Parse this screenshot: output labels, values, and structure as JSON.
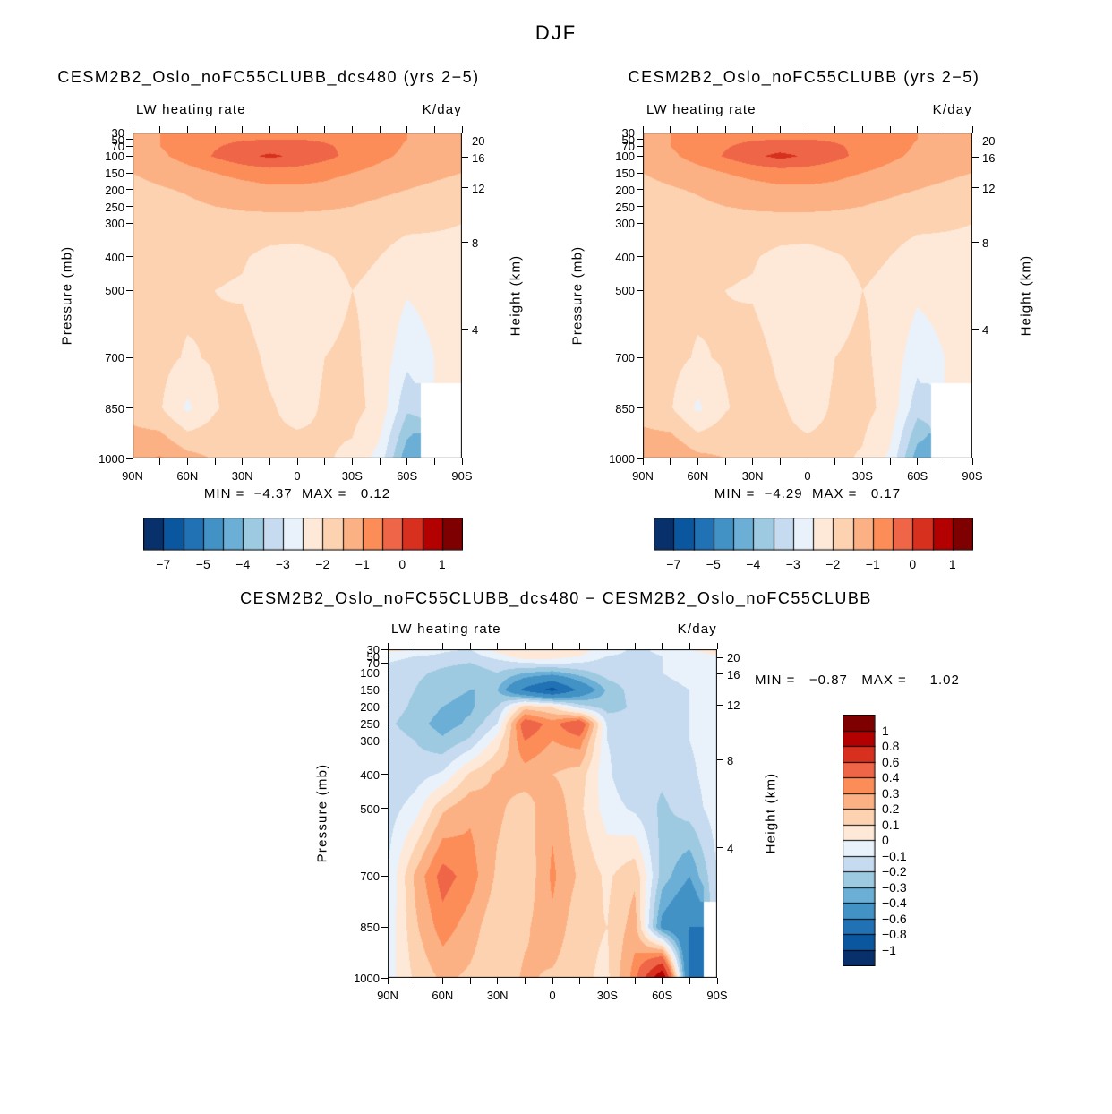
{
  "title": "DJF",
  "chart_data": [
    {
      "id": "panel1",
      "type": "heatmap",
      "title": "CESM2B2_Oslo_noFC55CLUBB_dcs480 (yrs 2−5)",
      "subtitle_left": "LW heating rate",
      "subtitle_right": "K/day",
      "ylabel_left": "Pressure (mb)",
      "ylabel_right": "Height (km)",
      "stats_text": "MIN =  −4.37  MAX =   0.12",
      "min": -4.37,
      "max": 0.12,
      "lat_range": [
        90,
        -90
      ],
      "pressure_range_mb": [
        30,
        1000
      ],
      "lat_tick_labels": [
        "90N",
        "60N",
        "30N",
        "0",
        "30S",
        "60S",
        "90S"
      ],
      "pressure_ticks": [
        30,
        50,
        70,
        100,
        150,
        200,
        250,
        300,
        400,
        500,
        700,
        850,
        1000
      ],
      "pressure_tick_labels": [
        "30",
        "50",
        "70",
        "100",
        "150",
        "200",
        "250",
        "300",
        "400",
        "500",
        "700",
        "850",
        "1000"
      ],
      "height_ticks_km": [
        20,
        16,
        12,
        8,
        4
      ],
      "height_tick_pressures": [
        55,
        104,
        194,
        357,
        616
      ],
      "levels": [
        -7,
        -6,
        -5,
        -4.5,
        -4,
        -3.5,
        -3,
        -2.5,
        -2,
        -1.5,
        -1,
        -0.5,
        0,
        0.5,
        1
      ],
      "palette": [
        "#08306b",
        "#0a57a0",
        "#2171b5",
        "#4292c6",
        "#6baed6",
        "#9ecae1",
        "#c6dbef",
        "#e9f2fb",
        "#fee9d9",
        "#fdd2b0",
        "#fcb184",
        "#fc8d59",
        "#ef6548",
        "#d7301f",
        "#b30000",
        "#7f0000"
      ],
      "colorbar": {
        "orientation": "horizontal",
        "labels": [
          "−7",
          "−5",
          "−4",
          "−3",
          "−2",
          "−1",
          "0",
          "1"
        ],
        "indices": [
          0,
          2,
          4,
          6,
          8,
          10,
          12,
          14
        ]
      },
      "lat_grid": [
        90,
        75,
        60,
        45,
        30,
        15,
        0,
        -15,
        -30,
        -45,
        -60,
        -75,
        -90
      ],
      "pressure_grid": [
        30,
        50,
        70,
        100,
        150,
        200,
        250,
        300,
        400,
        500,
        700,
        850,
        1000
      ],
      "values": [
        [
          -1.2,
          -1.0,
          -0.85,
          -0.75,
          -0.7,
          -0.65,
          -0.65,
          -0.7,
          -0.75,
          -0.85,
          -1.0,
          -1.15,
          -1.25
        ],
        [
          -1.25,
          -1.0,
          -0.8,
          -0.65,
          -0.55,
          -0.5,
          -0.5,
          -0.55,
          -0.65,
          -0.8,
          -1.0,
          -1.2,
          -1.3
        ],
        [
          -1.2,
          -1.0,
          -0.75,
          -0.55,
          -0.35,
          -0.3,
          -0.35,
          -0.45,
          -0.6,
          -0.8,
          -1.05,
          -1.2,
          -1.3
        ],
        [
          -1.35,
          -1.1,
          -0.8,
          -0.45,
          -0.15,
          0.1,
          -0.1,
          -0.35,
          -0.65,
          -0.9,
          -1.1,
          -1.3,
          -1.4
        ],
        [
          -1.5,
          -1.35,
          -1.2,
          -1.0,
          -0.85,
          -0.75,
          -0.75,
          -0.85,
          -1.0,
          -1.15,
          -1.3,
          -1.4,
          -1.5
        ],
        [
          -1.65,
          -1.55,
          -1.45,
          -1.3,
          -1.2,
          -1.1,
          -1.1,
          -1.15,
          -1.3,
          -1.4,
          -1.5,
          -1.6,
          -1.7
        ],
        [
          -1.8,
          -1.7,
          -1.6,
          -1.5,
          -1.45,
          -1.4,
          -1.4,
          -1.45,
          -1.5,
          -1.6,
          -1.7,
          -1.8,
          -1.85
        ],
        [
          -1.9,
          -1.8,
          -1.75,
          -1.7,
          -1.65,
          -1.7,
          -1.7,
          -1.65,
          -1.7,
          -1.8,
          -1.9,
          -1.95,
          -2.0
        ],
        [
          -2.0,
          -1.9,
          -1.85,
          -1.9,
          -1.95,
          -2.15,
          -2.2,
          -2.05,
          -1.9,
          -2.0,
          -2.2,
          -2.15,
          -2.1
        ],
        [
          -2.0,
          -1.9,
          -1.9,
          -2.0,
          -2.05,
          -2.3,
          -2.4,
          -2.2,
          -2.0,
          -2.1,
          -2.45,
          -2.3,
          -2.2
        ],
        [
          -1.9,
          -1.85,
          -2.05,
          -1.95,
          -1.8,
          -2.1,
          -2.2,
          -2.0,
          -1.9,
          -2.2,
          -2.85,
          -2.5,
          -2.3
        ],
        [
          -1.7,
          -1.95,
          -2.6,
          -2.05,
          -1.75,
          -1.95,
          -2.15,
          -1.95,
          -1.85,
          -2.15,
          -3.4,
          null,
          null
        ],
        [
          -1.1,
          -0.95,
          -1.3,
          -1.55,
          -1.75,
          -1.9,
          -1.8,
          -1.95,
          -2.1,
          -2.7,
          -4.37,
          null,
          null
        ]
      ]
    },
    {
      "id": "panel2",
      "type": "heatmap",
      "title": "CESM2B2_Oslo_noFC55CLUBB (yrs 2−5)",
      "subtitle_left": "LW heating rate",
      "subtitle_right": "K/day",
      "ylabel_left": "Pressure (mb)",
      "ylabel_right": "Height (km)",
      "stats_text": "MIN =  −4.29  MAX =   0.17",
      "min": -4.29,
      "max": 0.17,
      "lat_range": [
        90,
        -90
      ],
      "pressure_range_mb": [
        30,
        1000
      ],
      "lat_tick_labels": [
        "90N",
        "60N",
        "30N",
        "0",
        "30S",
        "60S",
        "90S"
      ],
      "pressure_ticks": [
        30,
        50,
        70,
        100,
        150,
        200,
        250,
        300,
        400,
        500,
        700,
        850,
        1000
      ],
      "pressure_tick_labels": [
        "30",
        "50",
        "70",
        "100",
        "150",
        "200",
        "250",
        "300",
        "400",
        "500",
        "700",
        "850",
        "1000"
      ],
      "height_ticks_km": [
        20,
        16,
        12,
        8,
        4
      ],
      "height_tick_pressures": [
        55,
        104,
        194,
        357,
        616
      ],
      "levels": [
        -7,
        -6,
        -5,
        -4.5,
        -4,
        -3.5,
        -3,
        -2.5,
        -2,
        -1.5,
        -1,
        -0.5,
        0,
        0.5,
        1
      ],
      "palette": [
        "#08306b",
        "#0a57a0",
        "#2171b5",
        "#4292c6",
        "#6baed6",
        "#9ecae1",
        "#c6dbef",
        "#e9f2fb",
        "#fee9d9",
        "#fdd2b0",
        "#fcb184",
        "#fc8d59",
        "#ef6548",
        "#d7301f",
        "#b30000",
        "#7f0000"
      ],
      "colorbar": {
        "orientation": "horizontal",
        "labels": [
          "−7",
          "−5",
          "−4",
          "−3",
          "−2",
          "−1",
          "0",
          "1"
        ],
        "indices": [
          0,
          2,
          4,
          6,
          8,
          10,
          12,
          14
        ]
      },
      "lat_grid": [
        90,
        75,
        60,
        45,
        30,
        15,
        0,
        -15,
        -30,
        -45,
        -60,
        -75,
        -90
      ],
      "pressure_grid": [
        30,
        50,
        70,
        100,
        150,
        200,
        250,
        300,
        400,
        500,
        700,
        850,
        1000
      ],
      "values": [
        [
          -1.2,
          -1.0,
          -0.85,
          -0.75,
          -0.7,
          -0.65,
          -0.65,
          -0.7,
          -0.75,
          -0.85,
          -1.0,
          -1.15,
          -1.25
        ],
        [
          -1.25,
          -1.0,
          -0.8,
          -0.65,
          -0.55,
          -0.5,
          -0.5,
          -0.55,
          -0.65,
          -0.8,
          -1.0,
          -1.2,
          -1.3
        ],
        [
          -1.2,
          -1.0,
          -0.75,
          -0.55,
          -0.35,
          -0.28,
          -0.35,
          -0.45,
          -0.6,
          -0.8,
          -1.05,
          -1.2,
          -1.3
        ],
        [
          -1.35,
          -1.1,
          -0.8,
          -0.45,
          -0.12,
          0.15,
          -0.08,
          -0.35,
          -0.65,
          -0.9,
          -1.1,
          -1.3,
          -1.4
        ],
        [
          -1.5,
          -1.35,
          -1.2,
          -1.0,
          -0.85,
          -0.75,
          -0.75,
          -0.85,
          -1.0,
          -1.15,
          -1.3,
          -1.4,
          -1.5
        ],
        [
          -1.65,
          -1.55,
          -1.45,
          -1.3,
          -1.2,
          -1.1,
          -1.1,
          -1.15,
          -1.3,
          -1.4,
          -1.5,
          -1.6,
          -1.7
        ],
        [
          -1.8,
          -1.7,
          -1.6,
          -1.5,
          -1.45,
          -1.4,
          -1.4,
          -1.45,
          -1.5,
          -1.6,
          -1.7,
          -1.8,
          -1.85
        ],
        [
          -1.9,
          -1.8,
          -1.75,
          -1.7,
          -1.65,
          -1.7,
          -1.7,
          -1.65,
          -1.7,
          -1.8,
          -1.9,
          -1.95,
          -2.0
        ],
        [
          -2.0,
          -1.9,
          -1.85,
          -1.9,
          -1.95,
          -2.15,
          -2.2,
          -2.05,
          -1.9,
          -2.0,
          -2.2,
          -2.15,
          -2.1
        ],
        [
          -2.0,
          -1.9,
          -1.9,
          -2.0,
          -2.05,
          -2.3,
          -2.4,
          -2.2,
          -2.0,
          -2.1,
          -2.4,
          -2.3,
          -2.2
        ],
        [
          -1.9,
          -1.85,
          -2.05,
          -1.95,
          -1.8,
          -2.1,
          -2.2,
          -2.0,
          -1.9,
          -2.2,
          -2.8,
          -2.5,
          -2.3
        ],
        [
          -1.7,
          -1.95,
          -2.6,
          -2.05,
          -1.75,
          -1.95,
          -2.15,
          -1.95,
          -1.85,
          -2.15,
          -3.3,
          null,
          null
        ],
        [
          -1.15,
          -1.0,
          -1.35,
          -1.5,
          -1.7,
          -1.9,
          -1.85,
          -1.9,
          -2.05,
          -2.6,
          -4.29,
          null,
          null
        ]
      ]
    },
    {
      "id": "panel3",
      "type": "heatmap",
      "title": "CESM2B2_Oslo_noFC55CLUBB_dcs480 − CESM2B2_Oslo_noFC55CLUBB",
      "subtitle_left": "LW heating rate",
      "subtitle_right": "K/day",
      "ylabel_left": "Pressure (mb)",
      "ylabel_right": "Height (km)",
      "stats_text": "MIN =   −0.87   MAX =     1.02",
      "min": -0.87,
      "max": 1.02,
      "lat_range": [
        90,
        -90
      ],
      "pressure_range_mb": [
        30,
        1000
      ],
      "lat_tick_labels": [
        "90N",
        "60N",
        "30N",
        "0",
        "30S",
        "60S",
        "90S"
      ],
      "pressure_ticks": [
        30,
        50,
        70,
        100,
        150,
        200,
        250,
        300,
        400,
        500,
        700,
        850,
        1000
      ],
      "pressure_tick_labels": [
        "30",
        "50",
        "70",
        "100",
        "150",
        "200",
        "250",
        "300",
        "400",
        "500",
        "700",
        "850",
        "1000"
      ],
      "height_ticks_km": [
        20,
        16,
        12,
        8,
        4
      ],
      "height_tick_pressures": [
        55,
        104,
        194,
        357,
        616
      ],
      "levels": [
        -1,
        -0.8,
        -0.6,
        -0.4,
        -0.3,
        -0.2,
        -0.1,
        0,
        0.1,
        0.2,
        0.3,
        0.4,
        0.6,
        0.8,
        1
      ],
      "palette": [
        "#08306b",
        "#0a57a0",
        "#2171b5",
        "#4292c6",
        "#6baed6",
        "#9ecae1",
        "#c6dbef",
        "#e9f2fb",
        "#fee9d9",
        "#fdd2b0",
        "#fcb184",
        "#fc8d59",
        "#ef6548",
        "#d7301f",
        "#b30000",
        "#7f0000"
      ],
      "colorbar": {
        "orientation": "vertical",
        "labels": [
          "1",
          "0.8",
          "0.6",
          "0.4",
          "0.3",
          "0.2",
          "0.1",
          "0",
          "−0.1",
          "−0.2",
          "−0.3",
          "−0.4",
          "−0.6",
          "−0.8",
          "−1"
        ],
        "indices": [
          0,
          1,
          2,
          3,
          4,
          5,
          6,
          7,
          8,
          9,
          10,
          11,
          12,
          13,
          14
        ]
      },
      "lat_grid": [
        90,
        75,
        60,
        45,
        30,
        15,
        0,
        -15,
        -30,
        -45,
        -60,
        -75,
        -90
      ],
      "pressure_grid": [
        30,
        50,
        70,
        100,
        150,
        200,
        250,
        300,
        400,
        500,
        700,
        850,
        1000
      ],
      "values": [
        [
          0.05,
          0.0,
          -0.08,
          -0.1,
          0.05,
          0.1,
          0.08,
          0.05,
          -0.05,
          -0.12,
          -0.08,
          0.0,
          0.05
        ],
        [
          -0.05,
          -0.1,
          -0.12,
          -0.15,
          -0.05,
          0.08,
          0.05,
          0.0,
          -0.1,
          -0.12,
          -0.1,
          -0.05,
          0.0
        ],
        [
          -0.1,
          -0.15,
          -0.18,
          -0.2,
          -0.15,
          -0.1,
          -0.08,
          -0.1,
          -0.15,
          -0.12,
          -0.1,
          -0.08,
          -0.05
        ],
        [
          -0.12,
          -0.18,
          -0.22,
          -0.25,
          -0.2,
          -0.3,
          -0.35,
          -0.25,
          -0.15,
          -0.12,
          -0.1,
          -0.08,
          -0.05
        ],
        [
          -0.15,
          -0.2,
          -0.28,
          -0.3,
          -0.3,
          -0.65,
          -0.87,
          -0.55,
          -0.28,
          -0.15,
          -0.12,
          -0.1,
          -0.05
        ],
        [
          -0.15,
          -0.22,
          -0.3,
          -0.32,
          -0.2,
          0.15,
          0.1,
          -0.15,
          -0.25,
          -0.18,
          -0.12,
          -0.1,
          -0.05
        ],
        [
          -0.18,
          -0.25,
          -0.35,
          -0.28,
          -0.1,
          0.5,
          0.35,
          0.55,
          -0.12,
          -0.18,
          -0.12,
          -0.1,
          -0.05
        ],
        [
          -0.15,
          -0.2,
          -0.28,
          -0.18,
          0.05,
          0.4,
          0.3,
          0.35,
          -0.1,
          -0.15,
          -0.12,
          -0.1,
          -0.05
        ],
        [
          -0.2,
          -0.15,
          -0.08,
          0.12,
          0.22,
          0.25,
          0.2,
          0.15,
          -0.08,
          -0.2,
          -0.18,
          -0.12,
          -0.05
        ],
        [
          -0.15,
          -0.05,
          0.18,
          0.28,
          0.22,
          0.15,
          0.28,
          0.12,
          -0.05,
          -0.12,
          -0.22,
          -0.15,
          -0.05
        ],
        [
          -0.1,
          0.22,
          0.45,
          0.35,
          0.18,
          0.12,
          0.32,
          0.18,
          0.08,
          0.18,
          -0.25,
          -0.4,
          -0.1
        ],
        [
          -0.08,
          0.18,
          0.35,
          0.25,
          0.12,
          0.18,
          0.28,
          0.12,
          0.1,
          0.25,
          -0.45,
          -0.6,
          null
        ],
        [
          -0.05,
          0.12,
          0.22,
          0.18,
          0.12,
          0.22,
          0.18,
          0.12,
          0.08,
          0.35,
          1.02,
          -0.7,
          null
        ]
      ]
    }
  ]
}
